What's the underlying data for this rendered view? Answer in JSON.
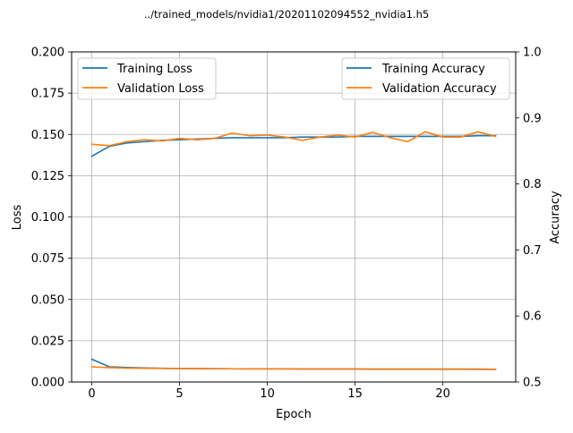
{
  "chart_data": {
    "type": "line",
    "title": "../trained_models/nvidia1/20201102094552_nvidia1.h5",
    "xlabel": "Epoch",
    "ylabel_left": "Loss",
    "ylabel_right": "Accuracy",
    "xlim": [
      -1.15,
      24.15
    ],
    "ylim_left": [
      0,
      0.2
    ],
    "ylim_right": [
      0.5,
      1.0
    ],
    "grid": true,
    "x_ticks": [
      0,
      5,
      10,
      15,
      20
    ],
    "x_tick_labels": [
      "0",
      "5",
      "10",
      "15",
      "20"
    ],
    "y_left_ticks": [
      0.0,
      0.025,
      0.05,
      0.075,
      0.1,
      0.125,
      0.15,
      0.175,
      0.2
    ],
    "y_left_tick_labels": [
      "0.000",
      "0.025",
      "0.050",
      "0.075",
      "0.100",
      "0.125",
      "0.150",
      "0.175",
      "0.200"
    ],
    "y_right_ticks": [
      0.5,
      0.6,
      0.7,
      0.8,
      0.9,
      1.0
    ],
    "y_right_tick_labels": [
      "0.5",
      "0.6",
      "0.7",
      "0.8",
      "0.9",
      "1.0"
    ],
    "legend_left": {
      "placement": "upper-left",
      "entries": [
        {
          "label": "Training Loss",
          "color": "#1f77b4"
        },
        {
          "label": "Validation Loss",
          "color": "#ff7f0e"
        }
      ]
    },
    "legend_right": {
      "placement": "upper-right",
      "entries": [
        {
          "label": "Training Accuracy",
          "color": "#1f77b4"
        },
        {
          "label": "Validation Accuracy",
          "color": "#ff7f0e"
        }
      ]
    },
    "x": [
      0,
      1,
      2,
      3,
      4,
      5,
      6,
      7,
      8,
      9,
      10,
      11,
      12,
      13,
      14,
      15,
      16,
      17,
      18,
      19,
      20,
      21,
      22,
      23
    ],
    "series": [
      {
        "name": "Training Loss",
        "axis": "left",
        "color": "#1f77b4",
        "values": [
          0.0138,
          0.0092,
          0.0088,
          0.0085,
          0.0083,
          0.0082,
          0.0081,
          0.0081,
          0.008,
          0.008,
          0.008,
          0.008,
          0.0079,
          0.0079,
          0.0079,
          0.0079,
          0.0078,
          0.0078,
          0.0078,
          0.0078,
          0.0078,
          0.0078,
          0.0078,
          0.0077
        ]
      },
      {
        "name": "Validation Loss",
        "axis": "left",
        "color": "#ff7f0e",
        "values": [
          0.0092,
          0.0087,
          0.0084,
          0.0083,
          0.0082,
          0.0081,
          0.0081,
          0.008,
          0.008,
          0.0079,
          0.0079,
          0.0079,
          0.0078,
          0.0078,
          0.0078,
          0.0078,
          0.0077,
          0.0077,
          0.0077,
          0.0077,
          0.0077,
          0.0077,
          0.0076,
          0.0076
        ]
      },
      {
        "name": "Training Accuracy",
        "axis": "right",
        "color": "#1f77b4",
        "values": [
          0.842,
          0.857,
          0.862,
          0.864,
          0.866,
          0.867,
          0.868,
          0.869,
          0.87,
          0.87,
          0.87,
          0.87,
          0.871,
          0.871,
          0.871,
          0.872,
          0.872,
          0.872,
          0.872,
          0.872,
          0.872,
          0.872,
          0.873,
          0.873
        ]
      },
      {
        "name": "Validation Accuracy",
        "axis": "right",
        "color": "#ff7f0e",
        "values": [
          0.86,
          0.858,
          0.864,
          0.867,
          0.865,
          0.869,
          0.867,
          0.869,
          0.877,
          0.873,
          0.874,
          0.871,
          0.866,
          0.871,
          0.874,
          0.871,
          0.878,
          0.87,
          0.864,
          0.879,
          0.871,
          0.871,
          0.879,
          0.872
        ]
      }
    ]
  }
}
